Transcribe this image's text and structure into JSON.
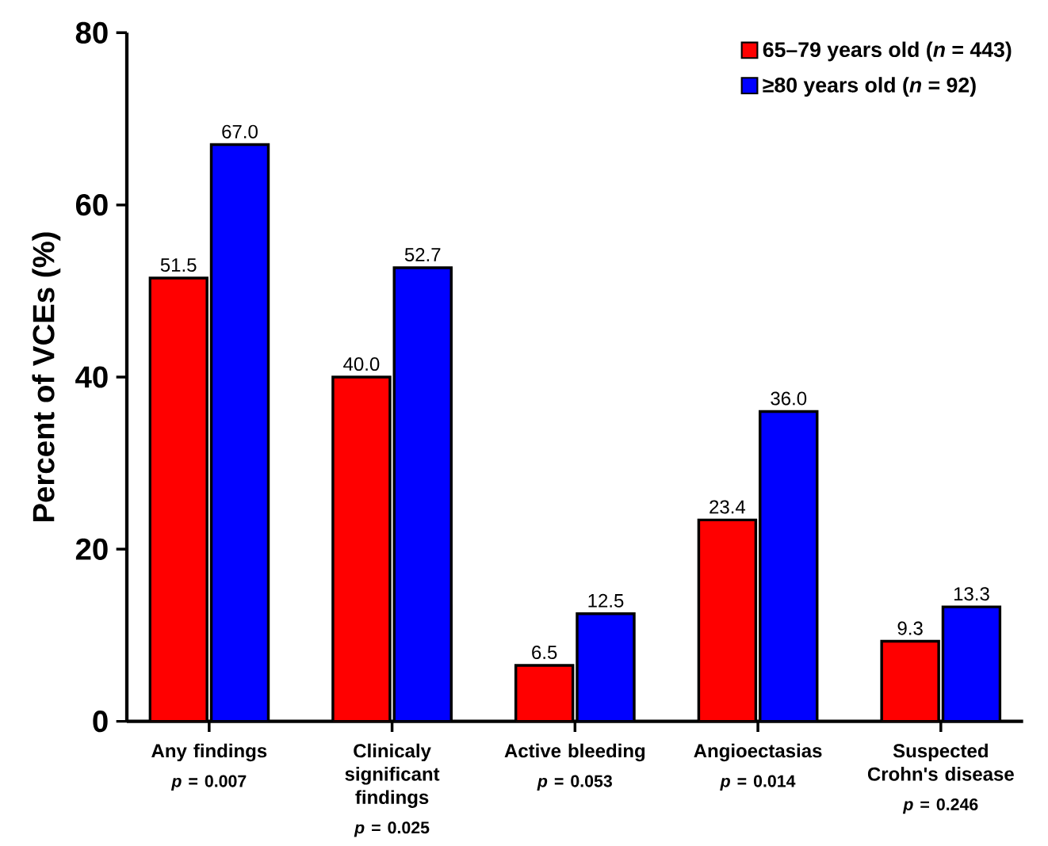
{
  "chart_data": {
    "type": "bar",
    "ylabel": "Percent of VCEs (%)",
    "categories": [
      "Any findings",
      "Clinicaly significant findings",
      "Active bleeding",
      "Angioectasias",
      "Suspected Crohn's disease"
    ],
    "series": [
      {
        "name": "65–79 years old (*n* = 443)",
        "color": "#ff0000",
        "values": [
          51.5,
          40.0,
          6.5,
          23.4,
          9.3
        ],
        "value_labels": [
          "51.5",
          "40.0",
          "6.5",
          "23.4",
          "9.3"
        ]
      },
      {
        "name": "≥80 years old (*n* = 92)",
        "color": "#0000ff",
        "values": [
          67.0,
          52.7,
          12.5,
          36.0,
          13.3
        ],
        "value_labels": [
          "67.0",
          "52.7",
          "12.5",
          "36.0",
          "13.3"
        ]
      }
    ],
    "annotations": [
      "*p* = 0.007",
      "*p* = 0.025",
      "*p* = 0.053",
      "*p* = 0.014",
      "*p* = 0.246"
    ],
    "ylim": [
      0,
      80
    ],
    "yticks": [
      0,
      20,
      40,
      60,
      80
    ],
    "legend": "top right",
    "grid": false
  }
}
